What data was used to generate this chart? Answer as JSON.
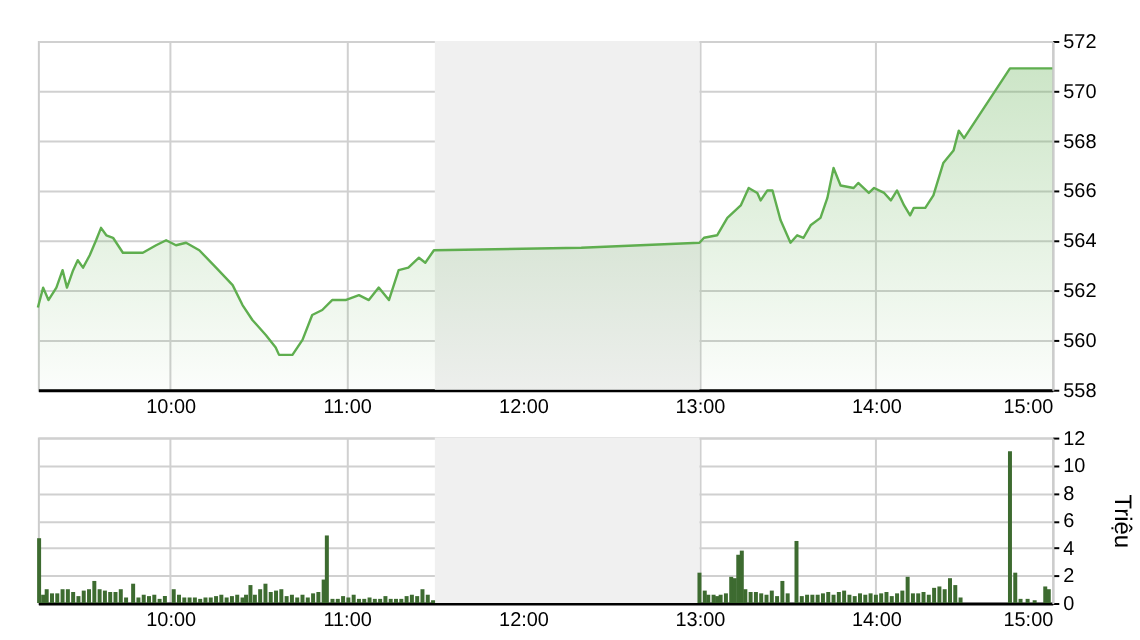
{
  "chart_data": [
    {
      "type": "area",
      "xlim": [
        9.25,
        15
      ],
      "xticks": [
        {
          "value": 10,
          "label": "10:00"
        },
        {
          "value": 11,
          "label": "11:00"
        },
        {
          "value": 12,
          "label": "12:00"
        },
        {
          "value": 13,
          "label": "13:00"
        },
        {
          "value": 14,
          "label": "14:00"
        },
        {
          "value": 15,
          "label": "15:00"
        }
      ],
      "ylim": [
        558,
        572
      ],
      "yticks": [
        558,
        560,
        562,
        564,
        566,
        568,
        570,
        572
      ],
      "grid": true,
      "bands": [
        {
          "axis": "x",
          "from": 11.5,
          "to": 13,
          "color": "#f0f0f0"
        }
      ],
      "series": [
        {
          "color": "#5fae4f",
          "x": [
            9.25,
            9.28,
            9.31,
            9.355,
            9.39,
            9.415,
            9.45,
            9.476,
            9.506,
            9.544,
            9.58,
            9.608,
            9.638,
            9.676,
            9.732,
            9.845,
            9.92,
            9.977,
            10.033,
            10.09,
            10.165,
            10.26,
            10.354,
            10.41,
            10.466,
            10.542,
            10.598,
            10.617,
            10.693,
            10.75,
            10.805,
            10.862,
            10.918,
            10.994,
            11.07,
            11.126,
            11.182,
            11.24,
            11.295,
            11.35,
            11.41,
            11.446,
            11.495,
            12.33,
            13.0,
            13.026,
            13.1,
            13.158,
            13.234,
            13.279,
            13.328,
            13.347,
            13.385,
            13.414,
            13.46,
            13.516,
            13.554,
            13.59,
            13.63,
            13.686,
            13.725,
            13.76,
            13.8,
            13.874,
            13.9,
            13.96,
            13.99,
            14.047,
            14.085,
            14.12,
            14.16,
            14.194,
            14.215,
            14.28,
            14.326,
            14.382,
            14.44,
            14.47,
            14.5,
            14.76,
            15.0
          ],
          "values": [
            561.3,
            562.1,
            561.6,
            562.1,
            562.8,
            562.1,
            562.8,
            563.2,
            562.9,
            563.4,
            564.0,
            564.5,
            564.2,
            564.1,
            563.5,
            563.5,
            563.8,
            564.0,
            563.8,
            563.9,
            563.6,
            562.9,
            562.2,
            561.4,
            560.8,
            560.2,
            559.7,
            559.4,
            559.4,
            560.0,
            561.0,
            561.2,
            561.6,
            561.6,
            561.8,
            561.6,
            562.1,
            561.6,
            562.8,
            562.9,
            563.3,
            563.1,
            563.6,
            563.7,
            563.9,
            564.1,
            564.2,
            564.9,
            565.4,
            566.1,
            565.9,
            565.6,
            566.0,
            566.0,
            564.8,
            563.9,
            564.2,
            564.1,
            564.6,
            564.9,
            565.7,
            566.9,
            566.2,
            566.1,
            566.3,
            565.9,
            566.1,
            565.9,
            565.6,
            566.0,
            565.4,
            565.0,
            565.3,
            565.3,
            565.8,
            567.1,
            567.6,
            568.4,
            568.1,
            570.9,
            570.9
          ]
        }
      ]
    },
    {
      "type": "bar",
      "ylabel": "Triệu",
      "xlim": [
        9.25,
        15
      ],
      "xticks": [
        {
          "value": 10,
          "label": "10:00"
        },
        {
          "value": 11,
          "label": "11:00"
        },
        {
          "value": 12,
          "label": "12:00"
        },
        {
          "value": 13,
          "label": "13:00"
        },
        {
          "value": 14,
          "label": "14:00"
        },
        {
          "value": 15,
          "label": "15:00"
        }
      ],
      "ylim": [
        0,
        12
      ],
      "yticks": [
        0,
        2,
        4,
        6,
        8,
        10,
        12
      ],
      "grid": true,
      "bands": [
        {
          "axis": "x",
          "from": 11.5,
          "to": 13,
          "color": "#f0f0f0"
        }
      ],
      "series": [
        {
          "color": "#3d6b30",
          "x": [
            9.257,
            9.28,
            9.3,
            9.33,
            9.36,
            9.39,
            9.42,
            9.45,
            9.48,
            9.51,
            9.54,
            9.57,
            9.6,
            9.63,
            9.66,
            9.69,
            9.72,
            9.75,
            9.79,
            9.82,
            9.85,
            9.88,
            9.91,
            9.94,
            9.97,
            10.02,
            10.05,
            10.08,
            10.11,
            10.14,
            10.17,
            10.2,
            10.23,
            10.26,
            10.29,
            10.32,
            10.35,
            10.38,
            10.41,
            10.43,
            10.455,
            10.48,
            10.51,
            10.54,
            10.57,
            10.6,
            10.63,
            10.66,
            10.69,
            10.72,
            10.75,
            10.78,
            10.81,
            10.84,
            10.87,
            10.888,
            10.92,
            10.95,
            10.98,
            11.01,
            11.04,
            11.07,
            11.1,
            11.13,
            11.16,
            11.19,
            11.22,
            11.25,
            11.28,
            11.31,
            11.34,
            11.37,
            11.4,
            11.43,
            11.46,
            11.49,
            13.0,
            13.03,
            13.05,
            13.08,
            13.1,
            13.12,
            13.15,
            13.18,
            13.2,
            13.22,
            13.24,
            13.26,
            13.29,
            13.32,
            13.35,
            13.38,
            13.41,
            13.44,
            13.47,
            13.5,
            13.55,
            13.58,
            13.61,
            13.64,
            13.67,
            13.7,
            13.73,
            13.76,
            13.79,
            13.82,
            13.85,
            13.88,
            13.91,
            13.94,
            13.97,
            14.0,
            14.03,
            14.06,
            14.09,
            14.12,
            14.15,
            14.18,
            14.21,
            14.24,
            14.27,
            14.3,
            14.33,
            14.36,
            14.39,
            14.42,
            14.45,
            14.48,
            14.76,
            14.79,
            14.82,
            14.86,
            14.9,
            14.96,
            14.98
          ],
          "values": [
            4.7,
            0.6,
            1.0,
            0.7,
            0.7,
            1.0,
            1.0,
            0.8,
            0.5,
            0.9,
            1.0,
            1.6,
            1.0,
            0.9,
            0.8,
            0.8,
            1.0,
            0.4,
            1.4,
            0.4,
            0.6,
            0.5,
            0.6,
            0.3,
            0.5,
            1.0,
            0.6,
            0.4,
            0.4,
            0.4,
            0.3,
            0.4,
            0.4,
            0.5,
            0.6,
            0.4,
            0.5,
            0.6,
            0.4,
            0.6,
            1.3,
            0.6,
            1.0,
            1.4,
            0.8,
            0.9,
            1.0,
            0.5,
            0.6,
            0.4,
            0.6,
            0.4,
            0.7,
            0.8,
            1.7,
            4.9,
            0.3,
            0.3,
            0.5,
            0.4,
            0.6,
            0.3,
            0.3,
            0.4,
            0.3,
            0.3,
            0.5,
            0.3,
            0.3,
            0.3,
            0.5,
            0.6,
            0.5,
            1.0,
            0.6,
            0.2,
            2.2,
            0.9,
            0.6,
            0.6,
            0.5,
            0.6,
            0.7,
            1.9,
            1.8,
            3.5,
            3.8,
            1.0,
            0.8,
            0.8,
            0.7,
            0.6,
            0.9,
            0.5,
            1.6,
            0.7,
            4.5,
            0.5,
            0.6,
            0.6,
            0.6,
            0.7,
            0.8,
            0.6,
            0.8,
            0.9,
            0.6,
            0.5,
            0.7,
            0.6,
            0.7,
            0.6,
            0.7,
            0.8,
            0.5,
            0.7,
            0.9,
            1.9,
            0.7,
            0.7,
            0.8,
            0.6,
            1.1,
            1.2,
            1.0,
            1.8,
            1.3,
            0.4,
            11.0,
            2.2,
            0.3,
            0.3,
            0.2,
            1.2,
            1.0
          ]
        }
      ]
    }
  ]
}
